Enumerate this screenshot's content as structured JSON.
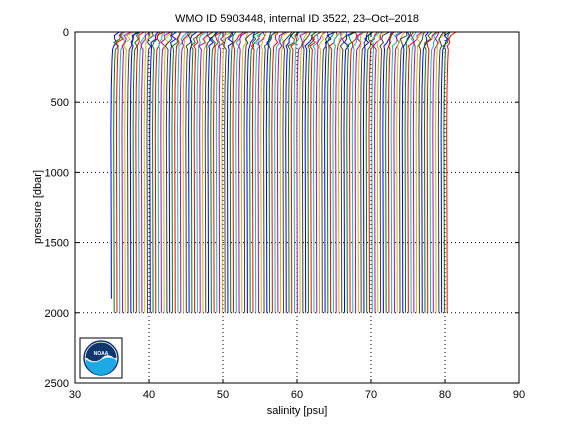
{
  "chart_data": {
    "type": "line",
    "title": "WMO ID 5903448, internal ID 3522, 23–Oct–2018",
    "xlabel": "salinity [psu]",
    "ylabel": "pressure [dbar]",
    "xlim": [
      30,
      90
    ],
    "ylim": [
      0,
      2500
    ],
    "y_reversed": true,
    "xticks": [
      "30",
      "40",
      "50",
      "60",
      "70",
      "80",
      "90"
    ],
    "yticks": [
      "0",
      "500",
      "1000",
      "1500",
      "2000",
      "2500"
    ],
    "grid": true,
    "profiles": {
      "count": 122,
      "offset_step_psu": 0.375,
      "base_salinity": {
        "pressure": [
          0,
          10,
          30,
          60,
          100,
          200,
          400,
          700,
          1000,
          1500,
          2000
        ],
        "salinity": [
          35.9,
          35.7,
          35.4,
          35.3,
          35.1,
          35.0,
          34.9,
          34.85,
          34.87,
          34.9,
          34.92
        ]
      },
      "max_pressure": 2000,
      "first_profile_max_pressure": 1900
    },
    "colors": [
      "#0000ff",
      "#008000",
      "#ff0000",
      "#00bfbf",
      "#bf00bf",
      "#bfbf00",
      "#404040"
    ]
  },
  "logo": {
    "text": "NOAA",
    "colors": {
      "dark_blue": "#10366e",
      "light_blue": "#1ca9e6",
      "white": "#ffffff"
    }
  }
}
